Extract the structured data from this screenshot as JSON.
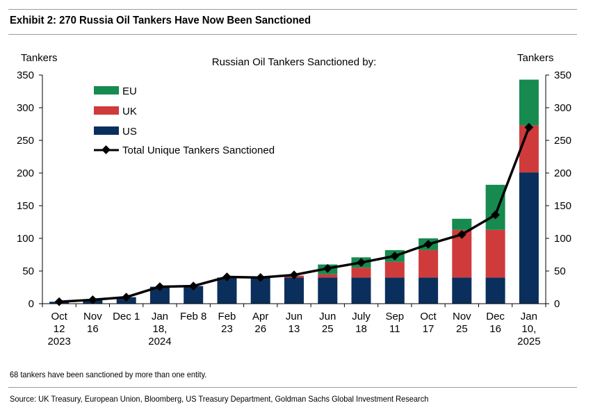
{
  "title": "Exhibit 2: 270 Russia Oil Tankers Have Now Been Sanctioned",
  "footnote": "68 tankers have been sanctioned by more than one entity.",
  "source": "Source: UK Treasury, European Union, Bloomberg, US Treasury Department, Goldman Sachs Global Investment Research",
  "colors": {
    "us": "#0b2f5c",
    "uk": "#cf3b3b",
    "eu": "#178a4f",
    "total": "#000000"
  },
  "chart_data": {
    "type": "bar",
    "stacked": true,
    "subtitle": "Russian Oil Tankers Sanctioned by:",
    "ylabel_left": "Tankers",
    "ylabel_right": "Tankers",
    "ylim": [
      0,
      350
    ],
    "yticks": [
      0,
      50,
      100,
      150,
      200,
      250,
      300,
      350
    ],
    "categories": [
      [
        "Oct",
        "12",
        "2023"
      ],
      [
        "Nov",
        "16"
      ],
      [
        "Dec 1"
      ],
      [
        "Jan",
        "18,",
        "2024"
      ],
      [
        "Feb 8"
      ],
      [
        "Feb",
        "23"
      ],
      [
        "Apr",
        "26"
      ],
      [
        "Jun",
        "13"
      ],
      [
        "Jun",
        "25"
      ],
      [
        "July",
        "18"
      ],
      [
        "Sep",
        "11"
      ],
      [
        "Oct",
        "17"
      ],
      [
        "Nov",
        "25"
      ],
      [
        "Dec",
        "16"
      ],
      [
        "Jan",
        "10,",
        "2025"
      ]
    ],
    "series": [
      {
        "name": "US",
        "key": "us",
        "values": [
          3,
          6,
          10,
          26,
          27,
          40,
          40,
          40,
          40,
          40,
          40,
          40,
          40,
          40,
          201
        ]
      },
      {
        "name": "UK",
        "key": "uk",
        "values": [
          0,
          0,
          0,
          0,
          0,
          0,
          0,
          3,
          5,
          15,
          24,
          42,
          73,
          73,
          72
        ]
      },
      {
        "name": "EU",
        "key": "eu",
        "values": [
          0,
          0,
          0,
          0,
          0,
          0,
          0,
          0,
          15,
          16,
          18,
          18,
          17,
          69,
          70
        ]
      }
    ],
    "line": {
      "name": "Total Unique Tankers Sanctioned",
      "values": [
        3,
        6,
        10,
        26,
        27,
        41,
        40,
        44,
        54,
        63,
        73,
        91,
        106,
        136,
        270
      ]
    },
    "legend": [
      "EU",
      "UK",
      "US",
      "Total Unique Tankers Sanctioned"
    ],
    "legend_position": "top-left"
  }
}
